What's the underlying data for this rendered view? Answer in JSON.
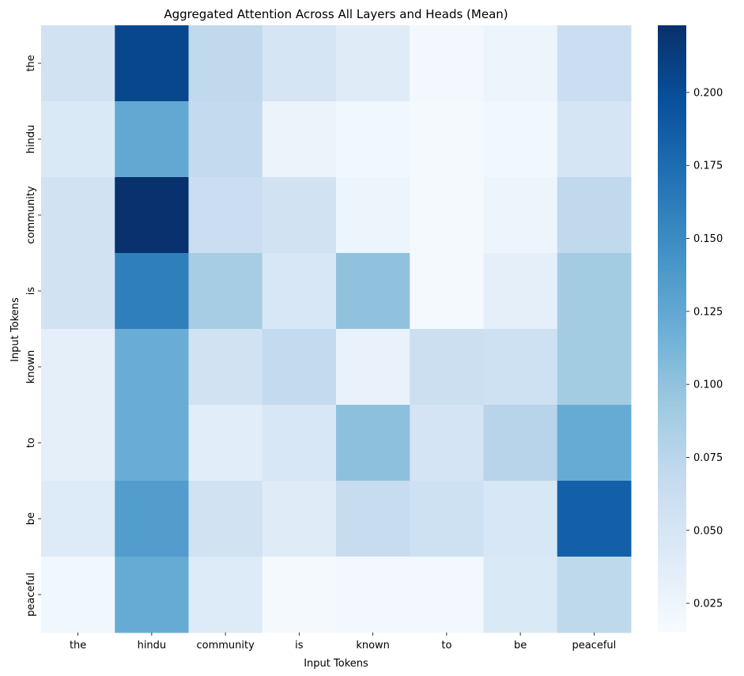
{
  "chart_data": {
    "type": "heatmap",
    "title": "Aggregated Attention Across All Layers and Heads (Mean)",
    "xlabel": "Input Tokens",
    "ylabel": "Input Tokens",
    "x_categories": [
      "the",
      "hindu",
      "community",
      "is",
      "known",
      "to",
      "be",
      "peaceful"
    ],
    "y_categories": [
      "the",
      "hindu",
      "community",
      "is",
      "known",
      "to",
      "be",
      "peaceful"
    ],
    "values": [
      [
        0.055,
        0.205,
        0.07,
        0.05,
        0.04,
        0.02,
        0.025,
        0.062
      ],
      [
        0.045,
        0.125,
        0.068,
        0.028,
        0.022,
        0.018,
        0.022,
        0.05
      ],
      [
        0.055,
        0.222,
        0.062,
        0.055,
        0.025,
        0.018,
        0.025,
        0.07
      ],
      [
        0.055,
        0.16,
        0.088,
        0.048,
        0.1,
        0.018,
        0.035,
        0.09
      ],
      [
        0.035,
        0.12,
        0.055,
        0.068,
        0.03,
        0.06,
        0.058,
        0.09
      ],
      [
        0.035,
        0.12,
        0.038,
        0.048,
        0.102,
        0.052,
        0.077,
        0.122
      ],
      [
        0.042,
        0.135,
        0.055,
        0.04,
        0.065,
        0.058,
        0.048,
        0.185
      ],
      [
        0.022,
        0.122,
        0.042,
        0.018,
        0.02,
        0.02,
        0.045,
        0.072
      ]
    ],
    "colorscale": "Blues",
    "vmin": 0.015,
    "vmax": 0.223,
    "colorbar_ticks": [
      "0.025",
      "0.050",
      "0.075",
      "0.100",
      "0.125",
      "0.150",
      "0.175",
      "0.200"
    ],
    "colorbar_tick_values": [
      0.025,
      0.05,
      0.075,
      0.1,
      0.125,
      0.15,
      0.175,
      0.2
    ]
  }
}
